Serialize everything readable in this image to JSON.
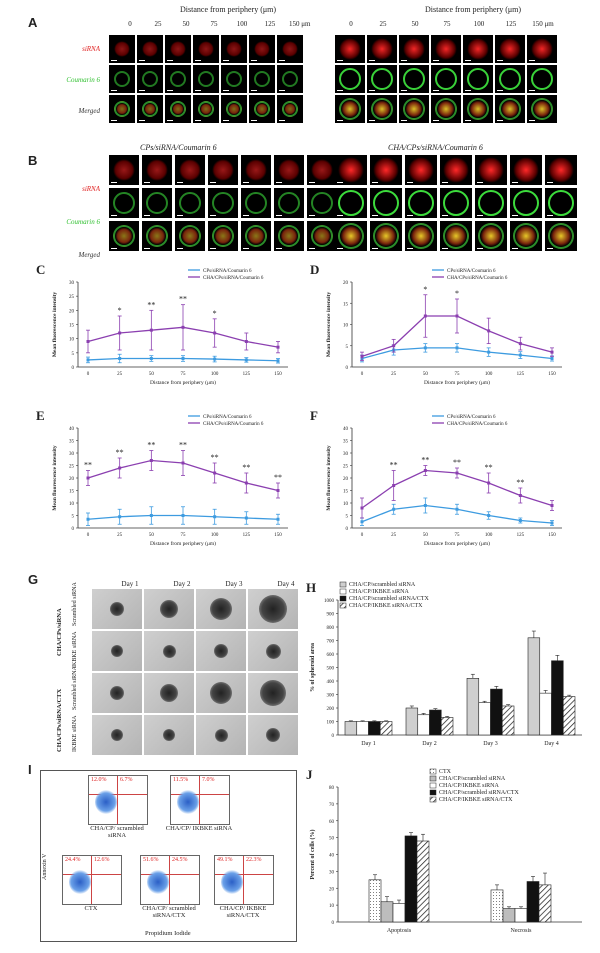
{
  "panels": {
    "A": {
      "label": "A",
      "axis_title": "Distance from periphery (μm)",
      "distances": [
        "0",
        "25",
        "50",
        "75",
        "100",
        "125",
        "150 μm"
      ],
      "rows": [
        "siRNA",
        "Coumarin 6",
        "Merged"
      ]
    },
    "B": {
      "label": "B",
      "left_title": "CPs/siRNA/Coumarin 6",
      "right_title": "CHA/CPs/siRNA/Coumarin 6",
      "rows": [
        "siRNA",
        "Coumarin 6",
        "Merged"
      ]
    },
    "G": {
      "label": "G",
      "days": [
        "Day 1",
        "Day 2",
        "Day 3",
        "Day 4"
      ],
      "group_labels": [
        "CHA/CPs/siRNA",
        "CHA/CPs/siRNA/CTX"
      ],
      "row_labels": [
        "Scrambled siRNA",
        "IKBKE siRNA",
        "Scrambled siRNA",
        "IKBKE siRNA"
      ]
    },
    "I": {
      "label": "I",
      "y_axis": "Annexin V",
      "x_axis": "Propidium Iodide",
      "plots": [
        {
          "caption": "CHA/CP/ scrambled siRNA",
          "ul": "12.0%",
          "ur": "6.7%"
        },
        {
          "caption": "CHA/CP/ IKBKE siRNA",
          "ul": "11.5%",
          "ur": "7.0%"
        },
        {
          "caption": "CTX",
          "ul": "24.4%",
          "ur": "12.6%"
        },
        {
          "caption": "CHA/CP/ scrambled siRNA/CTX",
          "ul": "51.6%",
          "ur": "24.5%"
        },
        {
          "caption": "CHA/CP/ IKBKE siRNA/CTX",
          "ul": "49.1%",
          "ur": "22.3%"
        }
      ]
    }
  },
  "colors": {
    "cps": "#3d9be0",
    "cha": "#8b3fb0",
    "red": "#e02020",
    "green": "#30c030"
  },
  "chart_data": [
    {
      "id": "C",
      "type": "line",
      "ylabel": "Mean fluorescence intensity",
      "xlabel": "Distance from periphery (μm)",
      "x": [
        0,
        25,
        50,
        75,
        100,
        125,
        150
      ],
      "ylim": [
        0,
        30
      ],
      "yticks": [
        0,
        5,
        10,
        15,
        20,
        25,
        30
      ],
      "series": [
        {
          "name": "CPs/siRNA/Coumarin 6",
          "values": [
            2.5,
            3,
            3,
            3,
            2.8,
            2.5,
            2.2
          ],
          "err": [
            1,
            1.5,
            1,
            1,
            1,
            0.8,
            0.8
          ]
        },
        {
          "name": "CHA/CPs/siRNA/Coumarin 6",
          "values": [
            9,
            12,
            13,
            14,
            12,
            9,
            7
          ],
          "err": [
            4,
            6,
            7,
            8,
            5,
            3,
            2
          ]
        }
      ],
      "marks": [
        "",
        "*",
        "**",
        "**",
        "*",
        "",
        ""
      ]
    },
    {
      "id": "D",
      "type": "line",
      "ylabel": "Mean fluorescence intensity",
      "xlabel": "Distance from periphery (μm)",
      "x": [
        0,
        25,
        50,
        75,
        100,
        125,
        150
      ],
      "ylim": [
        0,
        20
      ],
      "yticks": [
        0,
        5,
        10,
        15,
        20
      ],
      "series": [
        {
          "name": "CPs/siRNA/Coumarin 6",
          "values": [
            2,
            4,
            4.5,
            4.5,
            3.5,
            2.8,
            2
          ],
          "err": [
            0.8,
            1.2,
            1,
            1,
            1,
            0.8,
            0.6
          ]
        },
        {
          "name": "CHA/CPs/siRNA/Coumarin 6",
          "values": [
            2.5,
            5,
            12,
            12,
            8.5,
            5.5,
            3.5
          ],
          "err": [
            1,
            1.5,
            5,
            4,
            3,
            1.5,
            1
          ]
        }
      ],
      "marks": [
        "",
        "",
        "*",
        "*",
        "",
        "",
        ""
      ]
    },
    {
      "id": "E",
      "type": "line",
      "ylabel": "Mean fluorescence intensity",
      "xlabel": "Distance from periphery (μm)",
      "x": [
        0,
        25,
        50,
        75,
        100,
        125,
        150
      ],
      "ylim": [
        0,
        40
      ],
      "yticks": [
        0,
        5,
        10,
        15,
        20,
        25,
        30,
        35,
        40
      ],
      "series": [
        {
          "name": "CPs/siRNA/Coumarin 6",
          "values": [
            3.5,
            4.5,
            5,
            5,
            4.5,
            4,
            3.5
          ],
          "err": [
            2.5,
            3,
            3.5,
            3.5,
            3,
            2.5,
            2
          ]
        },
        {
          "name": "CHA/CPs/siRNA/Coumarin 6",
          "values": [
            20,
            24,
            27,
            26,
            22,
            18,
            15
          ],
          "err": [
            3,
            4,
            4,
            5,
            4,
            4,
            3
          ]
        }
      ],
      "marks": [
        "**",
        "**",
        "**",
        "**",
        "**",
        "**",
        "**"
      ]
    },
    {
      "id": "F",
      "type": "line",
      "ylabel": "Mean fluorescence intensity",
      "xlabel": "Distance from periphery (μm)",
      "x": [
        0,
        25,
        50,
        75,
        100,
        125,
        150
      ],
      "ylim": [
        0,
        40
      ],
      "yticks": [
        0,
        5,
        10,
        15,
        20,
        25,
        30,
        35,
        40
      ],
      "series": [
        {
          "name": "CPs/siRNA/Coumarin 6",
          "values": [
            2.5,
            7.5,
            9,
            7.5,
            5,
            3,
            2
          ],
          "err": [
            1.5,
            2,
            3,
            2,
            1.5,
            1,
            1
          ]
        },
        {
          "name": "CHA/CPs/siRNA/Coumarin 6",
          "values": [
            8,
            17,
            23,
            22,
            18,
            13,
            9
          ],
          "err": [
            4,
            6,
            2,
            2,
            4,
            3,
            2
          ]
        }
      ],
      "marks": [
        "",
        "**",
        "**",
        "**",
        "**",
        "**",
        ""
      ]
    },
    {
      "id": "H",
      "type": "bar",
      "ylabel": "% of spheroid area",
      "categories": [
        "Day 1",
        "Day 2",
        "Day 3",
        "Day 4"
      ],
      "ylim": [
        0,
        1000
      ],
      "yticks": [
        0,
        100,
        200,
        300,
        400,
        500,
        600,
        700,
        800,
        900,
        1000
      ],
      "series": [
        {
          "name": "CHA/CP/scrambled siRNA",
          "values": [
            100,
            200,
            420,
            720
          ],
          "err": [
            5,
            15,
            30,
            50
          ]
        },
        {
          "name": "CHA/CP/IKBKE siRNA",
          "values": [
            100,
            150,
            240,
            310
          ],
          "err": [
            5,
            10,
            10,
            20
          ]
        },
        {
          "name": "CHA/CP/scrambled siRNA/CTX",
          "values": [
            100,
            185,
            340,
            550
          ],
          "err": [
            5,
            10,
            20,
            40
          ]
        },
        {
          "name": "CHA/CP/IKBKE siRNA/CTX",
          "values": [
            100,
            130,
            215,
            285
          ],
          "err": [
            5,
            8,
            10,
            10
          ]
        }
      ]
    },
    {
      "id": "J",
      "type": "bar",
      "ylabel": "Percent of cells (%)",
      "categories": [
        "Apoptosis",
        "Necrosis"
      ],
      "ylim": [
        0,
        80
      ],
      "yticks": [
        0,
        10,
        20,
        30,
        40,
        50,
        60,
        70,
        80
      ],
      "series": [
        {
          "name": "CTX",
          "values": [
            25,
            19
          ],
          "err": [
            3,
            3
          ]
        },
        {
          "name": "CHA/CP/scrambled siRNA",
          "values": [
            12,
            8
          ],
          "err": [
            3,
            1
          ]
        },
        {
          "name": "CHA/CP/IKBKE siRNA",
          "values": [
            11,
            8
          ],
          "err": [
            2,
            1
          ]
        },
        {
          "name": "CHA/CP/scrambled siRNA/CTX",
          "values": [
            51,
            24
          ],
          "err": [
            2,
            3
          ]
        },
        {
          "name": "CHA/CP/IKBKE siRNA/CTX",
          "values": [
            48,
            22
          ],
          "err": [
            4,
            7
          ]
        }
      ]
    }
  ]
}
